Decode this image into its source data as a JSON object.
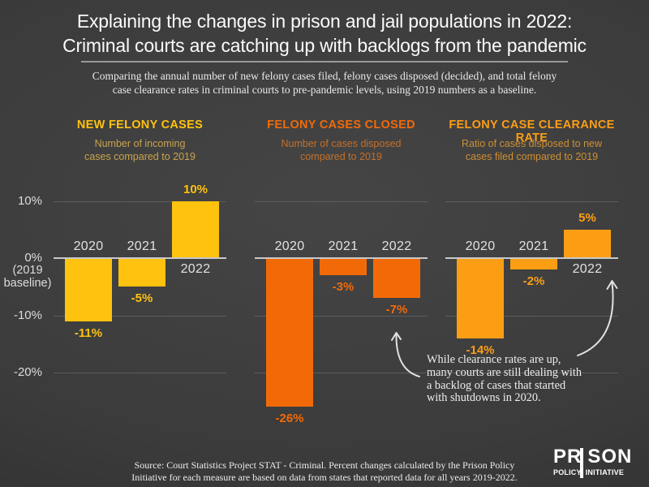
{
  "header": {
    "title": "Explaining the changes in prison and jail populations in 2022:\nCriminal courts are catching up with backlogs from the pandemic",
    "subtitle": "Comparing the annual number of new felony cases filed, felony cases disposed (decided), and total felony\ncase clearance rates in criminal courts to pre-pandemic levels, using 2019 numbers as a baseline."
  },
  "axis": {
    "ticks": [
      {
        "label": "10%",
        "value": 10
      },
      {
        "label": "0%",
        "value": 0
      },
      {
        "label": "-10%",
        "value": -10
      },
      {
        "label": "-20%",
        "value": -20
      }
    ],
    "baseline_note": "(2019\nbaseline)"
  },
  "chart_data": [
    {
      "type": "bar",
      "title": "NEW FELONY CASES",
      "subtitle": "Number of incoming\ncases compared to 2019",
      "categories": [
        "2020",
        "2021",
        "2022"
      ],
      "values": [
        -11,
        -5,
        10
      ],
      "value_labels": [
        "-11%",
        "-5%",
        "10%"
      ],
      "unit": "percent change vs 2019 baseline",
      "ylim": [
        -30,
        15
      ],
      "grid": true,
      "color": "#FFC20E",
      "subtitle_color": "#C9A34B"
    },
    {
      "type": "bar",
      "title": "FELONY CASES CLOSED",
      "subtitle": "Number of cases disposed\ncompared to 2019",
      "categories": [
        "2020",
        "2021",
        "2022"
      ],
      "values": [
        -26,
        -3,
        -7
      ],
      "value_labels": [
        "-26%",
        "-3%",
        "-7%"
      ],
      "unit": "percent change vs 2019 baseline",
      "ylim": [
        -30,
        15
      ],
      "grid": true,
      "color": "#F26A08",
      "subtitle_color": "#C4702A"
    },
    {
      "type": "bar",
      "title": "FELONY CASE CLEARANCE RATE",
      "subtitle": "Ratio of cases disposed to new\ncases filed compared to 2019",
      "categories": [
        "2020",
        "2021",
        "2022"
      ],
      "values": [
        -14,
        -2,
        5
      ],
      "value_labels": [
        "-14%",
        "-2%",
        "5%"
      ],
      "unit": "percent change vs 2019 baseline",
      "ylim": [
        -30,
        15
      ],
      "grid": true,
      "color": "#FC9E14",
      "subtitle_color": "#CE8F33"
    }
  ],
  "annotation": {
    "text": "While clearance rates are up,\nmany courts are still dealing with\na backlog of cases that started\nwith shutdowns in 2020."
  },
  "footer": {
    "source": "Source: Court Statistics Project STAT - Criminal. Percent changes calculated by the Prison Policy\nInitiative for each measure are based on data from states that reported data for all years 2019-2022.",
    "logo": {
      "brand": "PRISON POLICY INITIATIVE",
      "top": [
        "PR",
        "SON"
      ],
      "bottom": [
        "POLICY",
        "INITIATIVE"
      ]
    }
  },
  "colors": {
    "background": "#3b3b3b",
    "title_text": "#fbfbfb",
    "gridline": "#5d5d5d",
    "baseline": "#c8c8c8",
    "gold": "#FFC20E",
    "orange": "#F26A08",
    "amber": "#FC9E14"
  }
}
